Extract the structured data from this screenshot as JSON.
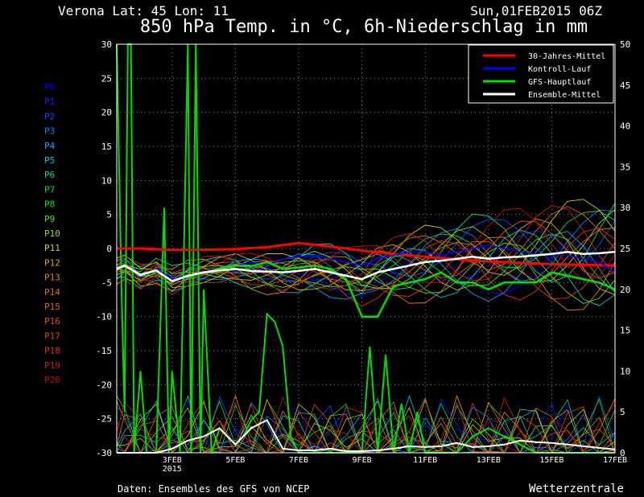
{
  "header": {
    "location": "Verona   Lat: 45 Lon: 11",
    "datetime": "Sun,01FEB2015 06Z",
    "title": "850 hPa Temp. in °C, 6h-Niederschlag in mm"
  },
  "footer": {
    "source": "Daten: Ensembles des GFS von NCEP",
    "brand": "Wetterzentrale"
  },
  "colors": {
    "climate": "#ff0000",
    "control": "#0000ff",
    "operational": "#00dd00",
    "mean": "#ffffff",
    "grid": "#888888"
  },
  "chart_data": {
    "type": "line",
    "title": "850 hPa Temp. in °C, 6h-Niederschlag in mm",
    "x_days": [
      1.25,
      17
    ],
    "x_ticks": [
      {
        "day": 3,
        "label": "3FEB",
        "sub": "2015"
      },
      {
        "day": 5,
        "label": "5FEB"
      },
      {
        "day": 7,
        "label": "7FEB"
      },
      {
        "day": 9,
        "label": "9FEB"
      },
      {
        "day": 11,
        "label": "11FEB"
      },
      {
        "day": 13,
        "label": "13FEB"
      },
      {
        "day": 15,
        "label": "15FEB"
      },
      {
        "day": 17,
        "label": "17FEB"
      }
    ],
    "y_left": {
      "min": -30,
      "max": 30,
      "ticks": [
        "30",
        "25",
        "20",
        "15",
        "10",
        "5",
        "0",
        "-5",
        "-10",
        "-15",
        "-20",
        "-25",
        "-30"
      ]
    },
    "y_right": {
      "min": 0,
      "max": 50,
      "ticks": [
        "50",
        "45",
        "40",
        "35",
        "30",
        "25",
        "20",
        "15",
        "10",
        "5",
        "0"
      ]
    },
    "grid": true,
    "legend_position": "top-right",
    "legend": [
      {
        "label": "30-Jahres-Mittel",
        "color": "#ff0000"
      },
      {
        "label": "Kontroll-Lauf",
        "color": "#0000ff"
      },
      {
        "label": "GFS-Hauptlauf",
        "color": "#00dd00"
      },
      {
        "label": "Ensemble-Mittel",
        "color": "#ffffff"
      }
    ],
    "members": [
      {
        "name": "P0",
        "color": "#0000ff"
      },
      {
        "name": "P1",
        "color": "#0022ff"
      },
      {
        "name": "P2",
        "color": "#0055ff"
      },
      {
        "name": "P3",
        "color": "#0088ff"
      },
      {
        "name": "P4",
        "color": "#00aaff"
      },
      {
        "name": "P5",
        "color": "#00cccc"
      },
      {
        "name": "P6",
        "color": "#00dd88"
      },
      {
        "name": "P7",
        "color": "#00dd44"
      },
      {
        "name": "P8",
        "color": "#22dd00"
      },
      {
        "name": "P9",
        "color": "#66dd00"
      },
      {
        "name": "P10",
        "color": "#99dd00"
      },
      {
        "name": "P11",
        "color": "#cccc00"
      },
      {
        "name": "P12",
        "color": "#ddaa00"
      },
      {
        "name": "P13",
        "color": "#dd8800"
      },
      {
        "name": "P14",
        "color": "#dd7700"
      },
      {
        "name": "P15",
        "color": "#dd6600"
      },
      {
        "name": "P16",
        "color": "#dd5500"
      },
      {
        "name": "P17",
        "color": "#dd4400"
      },
      {
        "name": "P18",
        "color": "#dd3300"
      },
      {
        "name": "P19",
        "color": "#cc2200"
      },
      {
        "name": "P20",
        "color": "#bb1100"
      }
    ],
    "series": [
      {
        "name": "30-Jahres-Mittel",
        "color": "#ff0000",
        "width": 3,
        "x": [
          1.25,
          2,
          3,
          4,
          5,
          6,
          7,
          8,
          9,
          10,
          11,
          12,
          13,
          14,
          15,
          16,
          17
        ],
        "y": [
          0,
          0,
          -0.2,
          -0.2,
          -0.1,
          0.2,
          0.8,
          0.3,
          -0.3,
          -0.8,
          -1.2,
          -1.6,
          -1.9,
          -2.1,
          -2.3,
          -2.4,
          -2.5
        ]
      },
      {
        "name": "Kontroll-Lauf",
        "color": "#0000ff",
        "width": 1.5,
        "x": [
          1.25,
          1.5,
          2,
          2.5,
          3,
          3.5,
          4,
          4.5,
          5,
          5.5,
          6,
          6.5,
          7,
          7.5,
          8,
          8.5,
          9,
          9.5,
          10,
          10.5,
          11,
          11.5,
          12,
          12.5,
          13,
          13.5,
          14,
          14.5,
          15,
          15.5,
          16,
          16.5,
          17
        ],
        "y": [
          -3,
          -2.5,
          -3.8,
          -3,
          -4.5,
          -4,
          -3.5,
          -3,
          -2.5,
          -2,
          -2.5,
          -1.5,
          -1.2,
          -1,
          -1.5,
          -2,
          -2.5,
          -1.5,
          -1,
          -0.5,
          -0.5,
          -1,
          -0.5,
          0,
          0.5,
          0,
          -0.5,
          -0.8,
          -1,
          -1,
          -1.5,
          -2,
          -3.5
        ]
      },
      {
        "name": "GFS-Hauptlauf",
        "color": "#00dd00",
        "width": 2.5,
        "x": [
          1.25,
          1.5,
          2,
          2.5,
          3,
          3.5,
          4,
          4.5,
          5,
          5.5,
          6,
          6.5,
          7,
          7.5,
          8,
          8.5,
          9,
          9.5,
          10,
          10.5,
          11,
          11.5,
          12,
          12.5,
          13,
          13.5,
          14,
          14.5,
          15,
          15.5,
          16,
          16.5,
          17
        ],
        "y": [
          -3,
          -2.6,
          -3.8,
          -3.2,
          -4.8,
          -4,
          -3.6,
          -3,
          -2.5,
          -2.6,
          -2,
          -3,
          -2.8,
          -2.5,
          -3,
          -4.5,
          -10,
          -10,
          -5.5,
          -5,
          -4.5,
          -3.5,
          -5,
          -5,
          -6,
          -5,
          -5,
          -5,
          -3.5,
          -4,
          -4.5,
          -5,
          -6
        ]
      },
      {
        "name": "Ensemble-Mittel",
        "color": "#ffffff",
        "width": 2.5,
        "x": [
          1.25,
          1.5,
          2,
          2.5,
          3,
          3.5,
          4,
          4.5,
          5,
          5.5,
          6,
          6.5,
          7,
          7.5,
          8,
          8.5,
          9,
          9.5,
          10,
          10.5,
          11,
          11.5,
          12,
          12.5,
          13,
          13.5,
          14,
          14.5,
          15,
          15.5,
          16,
          16.5,
          17
        ],
        "y": [
          -3,
          -2.5,
          -3.9,
          -3.2,
          -4.8,
          -4,
          -3.5,
          -3.2,
          -3,
          -3.3,
          -3.4,
          -3.5,
          -3.3,
          -3,
          -3.5,
          -4,
          -4.5,
          -3.5,
          -3,
          -2.5,
          -2,
          -1.8,
          -1.5,
          -1.2,
          -1.5,
          -1.3,
          -1.2,
          -1,
          -0.8,
          -0.5,
          -0.8,
          -0.7,
          -0.5
        ]
      }
    ],
    "precip_series": [
      {
        "name": "GFS-Hauptlauf",
        "color": "#00dd00",
        "axis": "right",
        "x": [
          1.25,
          1.4,
          1.5,
          1.6,
          1.7,
          1.8,
          2,
          2.2,
          2.5,
          2.75,
          2.9,
          3,
          3.25,
          3.5,
          3.6,
          3.75,
          3.9,
          4,
          4.25,
          4.5,
          5,
          5.25,
          5.5,
          5.75,
          6,
          6.25,
          6.5,
          6.75,
          7,
          7.5,
          8,
          8.5,
          9,
          9.25,
          9.5,
          9.75,
          10,
          10.25,
          10.5,
          10.75,
          11,
          11.25,
          11.5,
          12,
          12.5,
          13,
          13.5,
          14,
          14.5,
          15,
          15.5,
          16,
          16.5,
          17
        ],
        "y": [
          50,
          20,
          5,
          50,
          50,
          0,
          10,
          0,
          0,
          30,
          0,
          10,
          0,
          50,
          0,
          50,
          0,
          20,
          0,
          3,
          1,
          2,
          4,
          5,
          17,
          16,
          13,
          2,
          0,
          0,
          0,
          0,
          0,
          13,
          0,
          12,
          0,
          6,
          0,
          5,
          0,
          0,
          0,
          0,
          2,
          3,
          2,
          1,
          0,
          0,
          0,
          0,
          0,
          0
        ]
      },
      {
        "name": "Ensemble-Mittel",
        "color": "#ffffff",
        "axis": "right",
        "x": [
          1.25,
          2,
          2.5,
          3,
          3.5,
          4,
          4.5,
          5,
          5.5,
          6,
          6.5,
          7,
          7.5,
          8,
          8.5,
          9,
          9.5,
          10,
          10.5,
          11,
          11.5,
          12,
          12.5,
          13,
          13.5,
          14,
          14.5,
          15,
          15.5,
          16,
          16.5,
          17
        ],
        "y": [
          0,
          0,
          0,
          0.5,
          1.5,
          2,
          3,
          1,
          3,
          4,
          0.5,
          0.3,
          0.3,
          0.5,
          0.2,
          0.2,
          0.3,
          0.5,
          0.8,
          0.7,
          0.8,
          1.2,
          0.7,
          0.8,
          1,
          1.5,
          1.3,
          1.2,
          1,
          0.8,
          0.6,
          0.4
        ]
      }
    ]
  }
}
